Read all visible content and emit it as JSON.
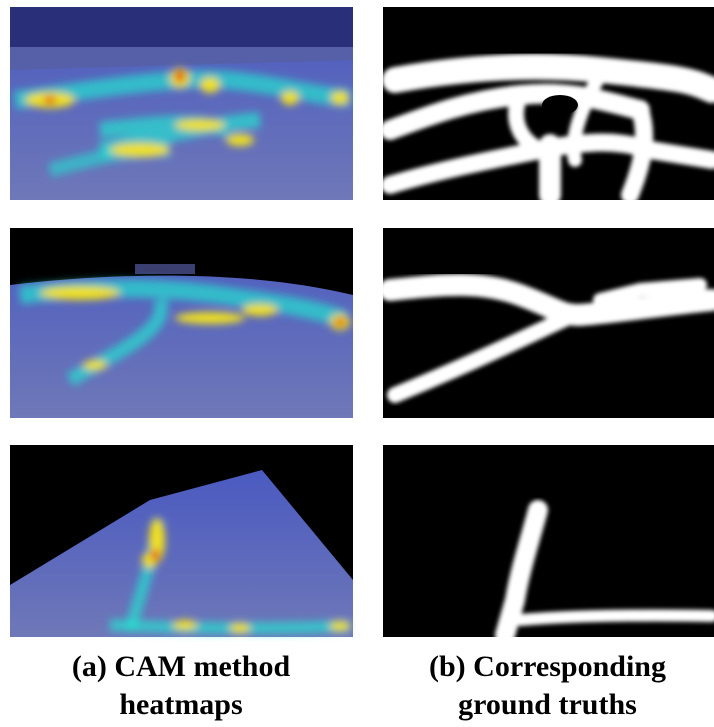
{
  "figure": {
    "captions": [
      "(a) CAM method heatmaps",
      "(b) Corresponding ground truths"
    ]
  }
}
